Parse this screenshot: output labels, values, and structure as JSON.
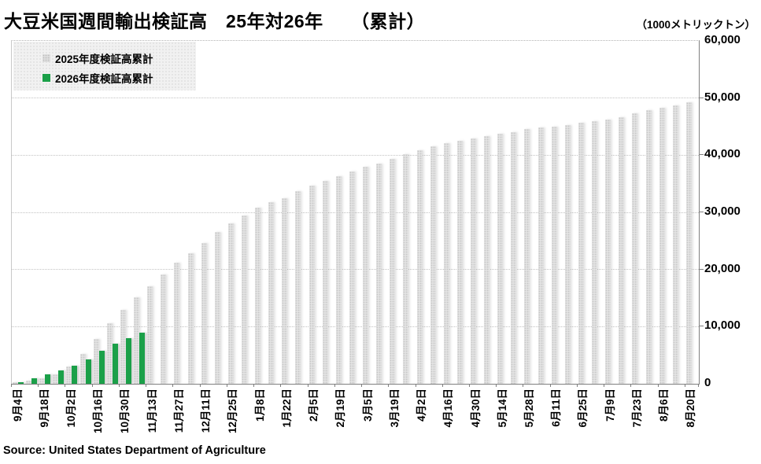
{
  "header": {
    "title": "大豆米国週間輸出検証高　25年対26年　　（累計）",
    "unit_label": "（1000メトリックトン）"
  },
  "legend": {
    "items": [
      {
        "label": "2025年度検証高累計",
        "color": "#dedede",
        "style": "dotted-gray"
      },
      {
        "label": "2026年度検証高累計",
        "color": "#1ba049",
        "style": "solid-green"
      }
    ]
  },
  "footer": {
    "source": "Source: United States Department of Agriculture"
  },
  "chart_data": {
    "type": "bar",
    "title": "大豆米国週間輸出検証高　25年対26年　（累計）",
    "unit": "1000メトリックトン",
    "ylim": [
      0,
      60000
    ],
    "ytick_interval": 10000,
    "ytick_labels": [
      "0",
      "10,000",
      "20,000",
      "30,000",
      "40,000",
      "50,000",
      "60,000"
    ],
    "grid": true,
    "yaxis_position": "right",
    "x_tick_labels": [
      "9月4日",
      "9月18日",
      "10月2日",
      "10月16日",
      "10月30日",
      "11月13日",
      "11月27日",
      "12月11日",
      "12月25日",
      "1月8日",
      "1月22日",
      "2月5日",
      "2月19日",
      "3月5日",
      "3月19日",
      "4月2日",
      "4月16日",
      "4月30日",
      "5月14日",
      "5月28日",
      "6月11日",
      "6月25日",
      "7月9日",
      "7月23日",
      "8月6日",
      "8月20日"
    ],
    "label_every_n_bars": 2,
    "bars_total": 51,
    "series": [
      {
        "name": "2025年度検証高累計",
        "color": "#dedede",
        "values": [
          250,
          550,
          900,
          1600,
          3000,
          5200,
          7900,
          10600,
          12900,
          15100,
          17000,
          19100,
          21200,
          22900,
          24600,
          26500,
          28100,
          29400,
          30800,
          31800,
          32500,
          33700,
          34700,
          35500,
          36400,
          37100,
          38000,
          38500,
          39300,
          40200,
          40900,
          41500,
          42100,
          42500,
          43000,
          43400,
          43700,
          44000,
          44600,
          44800,
          45000,
          45300,
          45700,
          45900,
          46200,
          46700,
          47400,
          47900,
          48300,
          48700,
          49300
        ]
      },
      {
        "name": "2026年度検証高累計",
        "color": "#1ba049",
        "values": [
          300,
          950,
          1600,
          2300,
          3100,
          4300,
          5800,
          7000,
          8000,
          8900
        ]
      }
    ]
  }
}
